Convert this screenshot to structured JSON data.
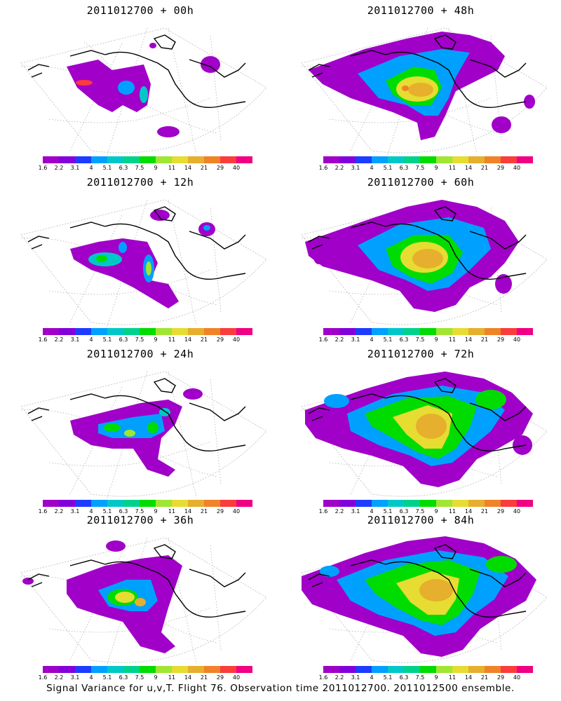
{
  "panels": [
    {
      "title": "2011012700 + 00h",
      "lead": 0
    },
    {
      "title": "2011012700 + 48h",
      "lead": 48
    },
    {
      "title": "2011012700 + 12h",
      "lead": 12
    },
    {
      "title": "2011012700 + 60h",
      "lead": 60
    },
    {
      "title": "2011012700 + 24h",
      "lead": 24
    },
    {
      "title": "2011012700 + 72h",
      "lead": 72
    },
    {
      "title": "2011012700 + 36h",
      "lead": 36
    },
    {
      "title": "2011012700 + 84h",
      "lead": 84
    }
  ],
  "colorbar": {
    "labels": [
      "1.6",
      "2.2",
      "3.1",
      "4",
      "5.1",
      "6.3",
      "7.5",
      "9",
      "11",
      "14",
      "21",
      "29",
      "40"
    ],
    "colors": [
      "#a000c8",
      "#8200dc",
      "#1e3cff",
      "#00a0ff",
      "#00c8c8",
      "#00d28c",
      "#00dc00",
      "#a0e632",
      "#e6dc32",
      "#e6af2d",
      "#f08228",
      "#fa3c3c",
      "#f00082"
    ]
  },
  "footer": "Signal Variance for u,v,T. Flight 76. Observation time 2011012700. 2011012500 ensemble."
}
